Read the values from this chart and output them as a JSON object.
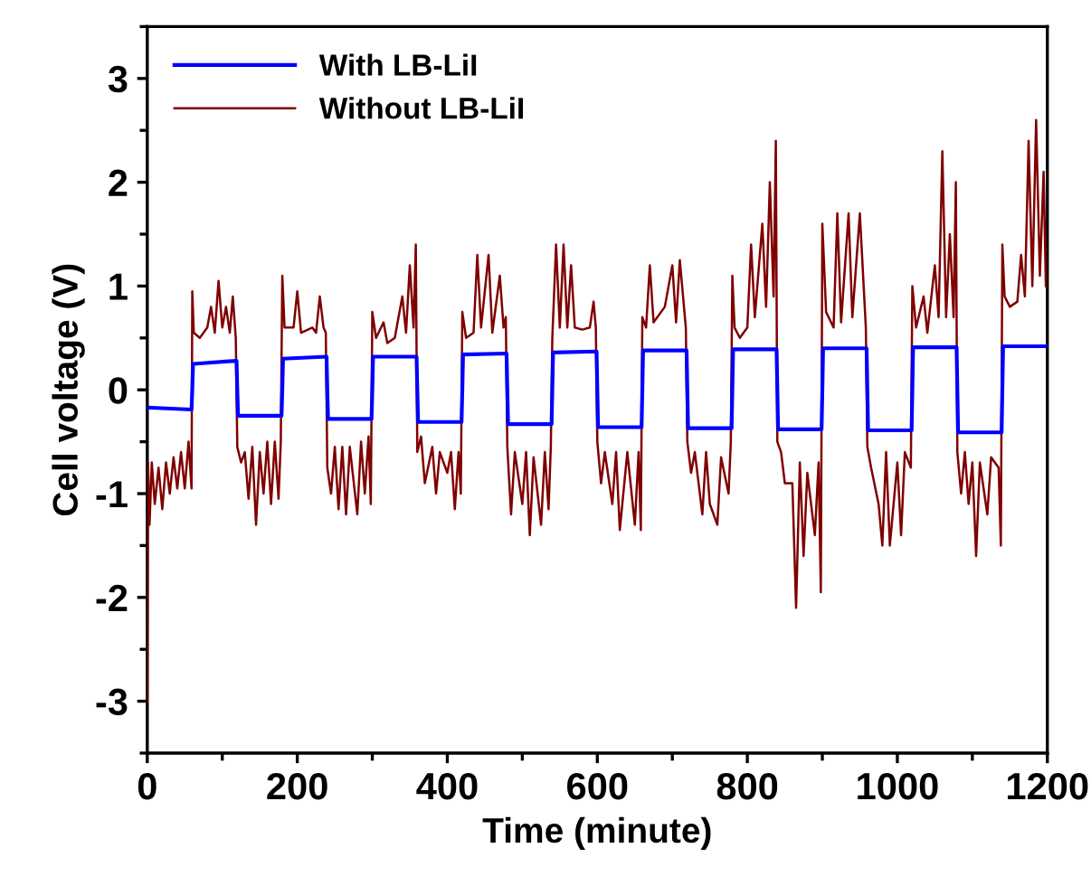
{
  "chart_data": {
    "type": "line",
    "xlabel": "Time (minute)",
    "ylabel": "Cell voltage (V)",
    "xlim": [
      0,
      1200
    ],
    "ylim": [
      -3.5,
      3.5
    ],
    "xticks": [
      0,
      {
        "value": 100,
        "label": null
      },
      200,
      {
        "value": 300,
        "label": null
      },
      400,
      {
        "value": 500,
        "label": null
      },
      600,
      {
        "value": 700,
        "label": null
      },
      800,
      {
        "value": 900,
        "label": null
      },
      1000,
      {
        "value": 1100,
        "label": null
      },
      1200
    ],
    "yticks": [
      {
        "value": -3.5,
        "label": null
      },
      -3,
      {
        "value": -2.5,
        "label": null
      },
      -2,
      {
        "value": -1.5,
        "label": null
      },
      -1,
      {
        "value": -0.5,
        "label": null
      },
      0,
      {
        "value": 0.5,
        "label": null
      },
      1,
      {
        "value": 1.5,
        "label": null
      },
      2,
      {
        "value": 2.5,
        "label": null
      },
      3,
      {
        "value": 3.5,
        "label": null
      }
    ],
    "grid": false,
    "legend": "top left",
    "marker": "none",
    "line_style": "solid",
    "series": [
      {
        "name": "With LB-LiI",
        "color": "#0000ff",
        "x": [
          0,
          59,
          60,
          61,
          119,
          120,
          121,
          179,
          180,
          181,
          239,
          240,
          241,
          299,
          300,
          301,
          359,
          360,
          361,
          419,
          420,
          421,
          479,
          480,
          481,
          539,
          540,
          541,
          599,
          600,
          601,
          659,
          660,
          661,
          719,
          720,
          721,
          779,
          780,
          781,
          839,
          840,
          841,
          899,
          900,
          901,
          959,
          960,
          961,
          1019,
          1020,
          1021,
          1079,
          1080,
          1081,
          1139,
          1140,
          1141,
          1200
        ],
        "values": [
          -0.17,
          -0.19,
          0.0,
          0.25,
          0.28,
          0.0,
          -0.25,
          -0.25,
          0.0,
          0.3,
          0.32,
          0.0,
          -0.28,
          -0.28,
          0.0,
          0.32,
          0.32,
          0.0,
          -0.31,
          -0.31,
          0.0,
          0.34,
          0.35,
          0.0,
          -0.33,
          -0.33,
          0.0,
          0.36,
          0.37,
          0.0,
          -0.36,
          -0.36,
          0.0,
          0.38,
          0.38,
          0.0,
          -0.37,
          -0.37,
          0.0,
          0.39,
          0.39,
          0.0,
          -0.38,
          -0.38,
          0.0,
          0.4,
          0.4,
          0.0,
          -0.39,
          -0.39,
          0.0,
          0.41,
          0.41,
          0.0,
          -0.41,
          -0.41,
          0.0,
          0.42,
          0.42
        ]
      },
      {
        "name": "Without LB-LiI",
        "color": "#800000",
        "x": [
          0,
          1,
          3,
          6,
          10,
          15,
          20,
          25,
          30,
          35,
          40,
          45,
          50,
          55,
          59,
          60,
          62,
          70,
          80,
          85,
          90,
          95,
          100,
          105,
          110,
          114,
          118,
          120,
          125,
          130,
          135,
          140,
          145,
          150,
          155,
          160,
          165,
          170,
          175,
          178,
          180,
          183,
          195,
          200,
          205,
          220,
          225,
          230,
          235,
          238,
          240,
          245,
          250,
          255,
          260,
          265,
          270,
          280,
          285,
          290,
          295,
          298,
          300,
          305,
          315,
          320,
          330,
          340,
          345,
          350,
          355,
          358,
          360,
          365,
          370,
          380,
          385,
          390,
          400,
          405,
          410,
          415,
          418,
          420,
          425,
          435,
          440,
          445,
          455,
          460,
          470,
          475,
          478,
          480,
          485,
          490,
          500,
          505,
          510,
          515,
          525,
          530,
          535,
          538,
          540,
          545,
          550,
          555,
          560,
          565,
          570,
          580,
          590,
          595,
          598,
          600,
          605,
          610,
          620,
          625,
          630,
          640,
          650,
          655,
          658,
          660,
          665,
          670,
          675,
          690,
          700,
          705,
          710,
          718,
          720,
          725,
          730,
          740,
          745,
          750,
          760,
          765,
          775,
          778,
          780,
          783,
          790,
          800,
          805,
          810,
          820,
          825,
          830,
          835,
          838,
          840,
          845,
          850,
          860,
          865,
          870,
          875,
          880,
          890,
          895,
          898,
          900,
          905,
          915,
          920,
          925,
          935,
          940,
          950,
          958,
          960,
          965,
          975,
          980,
          985,
          990,
          1000,
          1005,
          1010,
          1018,
          1020,
          1025,
          1035,
          1040,
          1050,
          1055,
          1060,
          1065,
          1070,
          1075,
          1078,
          1080,
          1085,
          1090,
          1095,
          1100,
          1105,
          1110,
          1120,
          1125,
          1135,
          1138,
          1140,
          1143,
          1150,
          1160,
          1165,
          1170,
          1175,
          1180,
          1185,
          1190,
          1195,
          1198
        ],
        "values": [
          -3.0,
          -0.7,
          -1.3,
          -0.7,
          -1.1,
          -0.75,
          -1.15,
          -0.7,
          -1.0,
          -0.65,
          -0.95,
          -0.6,
          -0.95,
          -0.5,
          -0.95,
          0.95,
          0.55,
          0.5,
          0.6,
          0.8,
          0.55,
          1.05,
          0.6,
          0.8,
          0.55,
          0.9,
          0.5,
          -0.55,
          -0.7,
          -0.6,
          -1.05,
          -0.55,
          -1.3,
          -0.6,
          -1.0,
          -0.5,
          -1.1,
          -0.5,
          -1.05,
          -0.5,
          1.1,
          0.6,
          0.6,
          0.95,
          0.55,
          0.6,
          0.55,
          0.9,
          0.6,
          0.55,
          -0.75,
          -1.0,
          -0.55,
          -1.15,
          -0.55,
          -1.2,
          -0.55,
          -1.2,
          -0.5,
          -1.0,
          -0.45,
          -1.1,
          0.75,
          0.5,
          0.65,
          0.45,
          0.5,
          0.9,
          0.55,
          1.2,
          0.6,
          1.4,
          -0.6,
          -0.45,
          -0.9,
          -0.55,
          -1.0,
          -0.6,
          -0.8,
          -0.6,
          -1.15,
          -0.6,
          -1.0,
          0.75,
          0.5,
          0.55,
          1.3,
          0.6,
          1.3,
          0.55,
          1.1,
          0.6,
          0.7,
          -0.55,
          -1.2,
          -0.6,
          -1.1,
          -0.6,
          -1.4,
          -0.65,
          -1.3,
          -0.6,
          -1.15,
          -0.55,
          0.5,
          1.4,
          0.6,
          1.4,
          0.6,
          1.2,
          0.6,
          0.58,
          0.6,
          0.85,
          0.6,
          -0.5,
          -0.9,
          -0.6,
          -1.1,
          -0.6,
          -1.35,
          -0.6,
          -1.3,
          -0.6,
          -1.35,
          0.7,
          0.6,
          1.2,
          0.65,
          0.8,
          1.2,
          0.65,
          1.25,
          0.6,
          -0.5,
          -0.8,
          -0.6,
          -1.2,
          -0.6,
          -1.1,
          -1.3,
          -0.65,
          -1.0,
          -0.5,
          1.1,
          0.6,
          0.5,
          0.6,
          1.4,
          0.7,
          1.6,
          0.8,
          2.0,
          0.9,
          2.4,
          -0.5,
          -0.6,
          -0.9,
          -0.9,
          -2.1,
          -0.7,
          -1.6,
          -0.8,
          -1.4,
          -0.7,
          -1.95,
          1.6,
          0.75,
          0.6,
          1.7,
          0.65,
          1.7,
          0.7,
          1.7,
          0.6,
          -0.55,
          -0.75,
          -1.1,
          -1.5,
          -0.6,
          -1.5,
          -0.7,
          -1.4,
          -0.6,
          -0.75,
          1.0,
          0.6,
          0.9,
          0.55,
          1.2,
          0.7,
          2.3,
          0.7,
          1.5,
          0.7,
          2.0,
          -0.6,
          -1.0,
          -0.6,
          -1.1,
          -0.7,
          -1.6,
          -0.7,
          -1.2,
          -0.65,
          -0.75,
          -1.5,
          1.4,
          0.9,
          0.8,
          0.85,
          1.3,
          0.9,
          2.4,
          1.0,
          2.6,
          1.1,
          2.1,
          1.0
        ]
      }
    ]
  }
}
